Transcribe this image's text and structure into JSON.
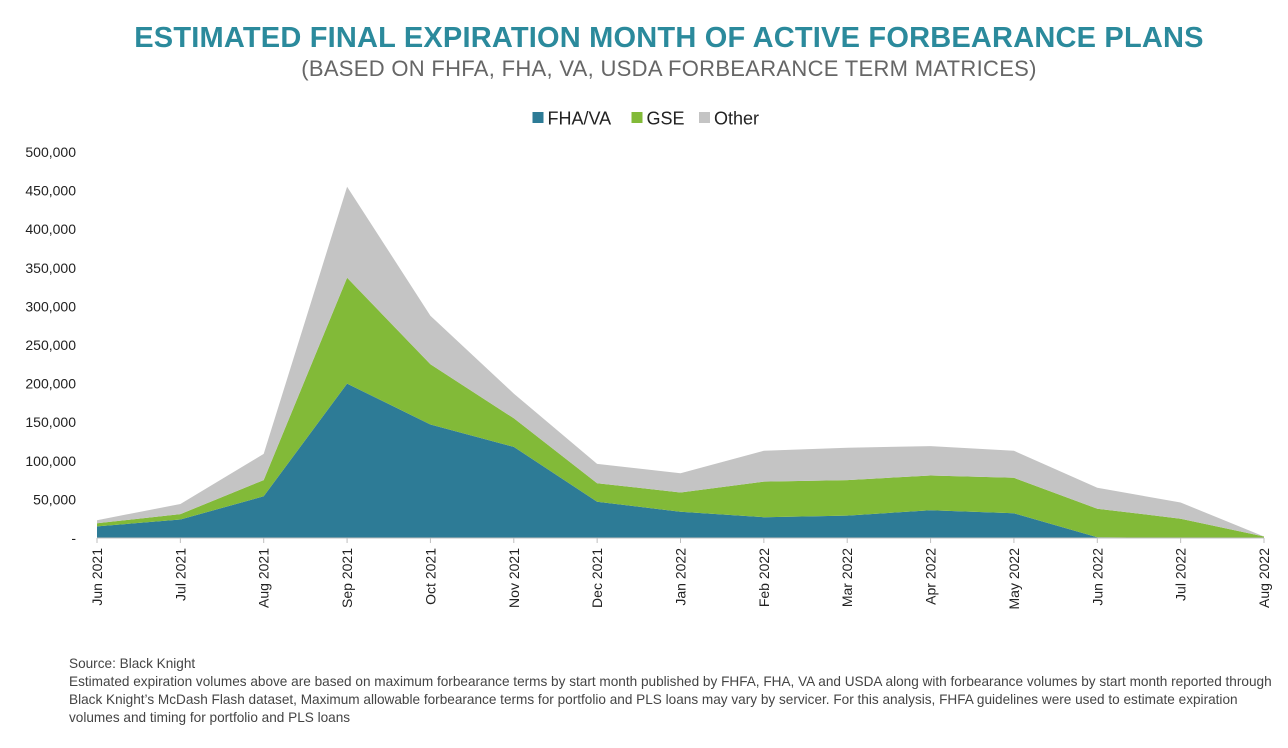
{
  "colors": {
    "title": "#2b8a9c",
    "fha_va": "#2d7b96",
    "gse": "#82ba38",
    "other": "#c4c4c4",
    "axis": "#bfbfbf"
  },
  "footnote": {
    "source": "Source: Black Knight",
    "body": "Estimated expiration volumes above are based on maximum forbearance terms by start month published by FHFA, FHA, VA and USDA along with forbearance volumes by start month reported through Black Knight’s McDash Flash dataset, Maximum allowable forbearance terms for portfolio and PLS loans may vary by servicer. For this analysis, FHFA guidelines were used to estimate expiration volumes and timing for portfolio and PLS loans"
  },
  "chart_data": {
    "type": "area",
    "stacked": true,
    "title": "ESTIMATED FINAL EXPIRATION MONTH OF ACTIVE FORBEARANCE PLANS",
    "subtitle": "(BASED ON FHFA, FHA, VA, USDA FORBEARANCE TERM MATRICES)",
    "categories": [
      "Jun 2021",
      "Jul 2021",
      "Aug 2021",
      "Sep 2021",
      "Oct 2021",
      "Nov 2021",
      "Dec 2021",
      "Jan 2022",
      "Feb 2022",
      "Mar 2022",
      "Apr 2022",
      "May 2022",
      "Jun 2022",
      "Jul 2022",
      "Aug 2022"
    ],
    "series": [
      {
        "name": "FHA/VA",
        "values": [
          15000,
          24000,
          54000,
          200000,
          147000,
          118000,
          47000,
          34000,
          27000,
          29000,
          36000,
          32000,
          1000,
          0,
          0
        ]
      },
      {
        "name": "GSE",
        "values": [
          4000,
          7000,
          21000,
          137000,
          78000,
          37000,
          24000,
          25000,
          46000,
          46000,
          45000,
          46000,
          37000,
          25000,
          2000
        ]
      },
      {
        "name": "Other",
        "values": [
          4000,
          13000,
          34000,
          118000,
          63000,
          32000,
          25000,
          25000,
          40000,
          42000,
          38000,
          35000,
          27000,
          21000,
          0
        ]
      }
    ],
    "yticks": [
      "-",
      "50,000",
      "100,000",
      "150,000",
      "200,000",
      "250,000",
      "300,000",
      "350,000",
      "400,000",
      "450,000",
      "500,000"
    ],
    "ytick_values": [
      0,
      50000,
      100000,
      150000,
      200000,
      250000,
      300000,
      350000,
      400000,
      450000,
      500000
    ],
    "ylim": [
      0,
      500000
    ],
    "legend": [
      "FHA/VA",
      "GSE",
      "Other"
    ],
    "legend_position": "top-center",
    "xlabel": "",
    "ylabel": ""
  }
}
